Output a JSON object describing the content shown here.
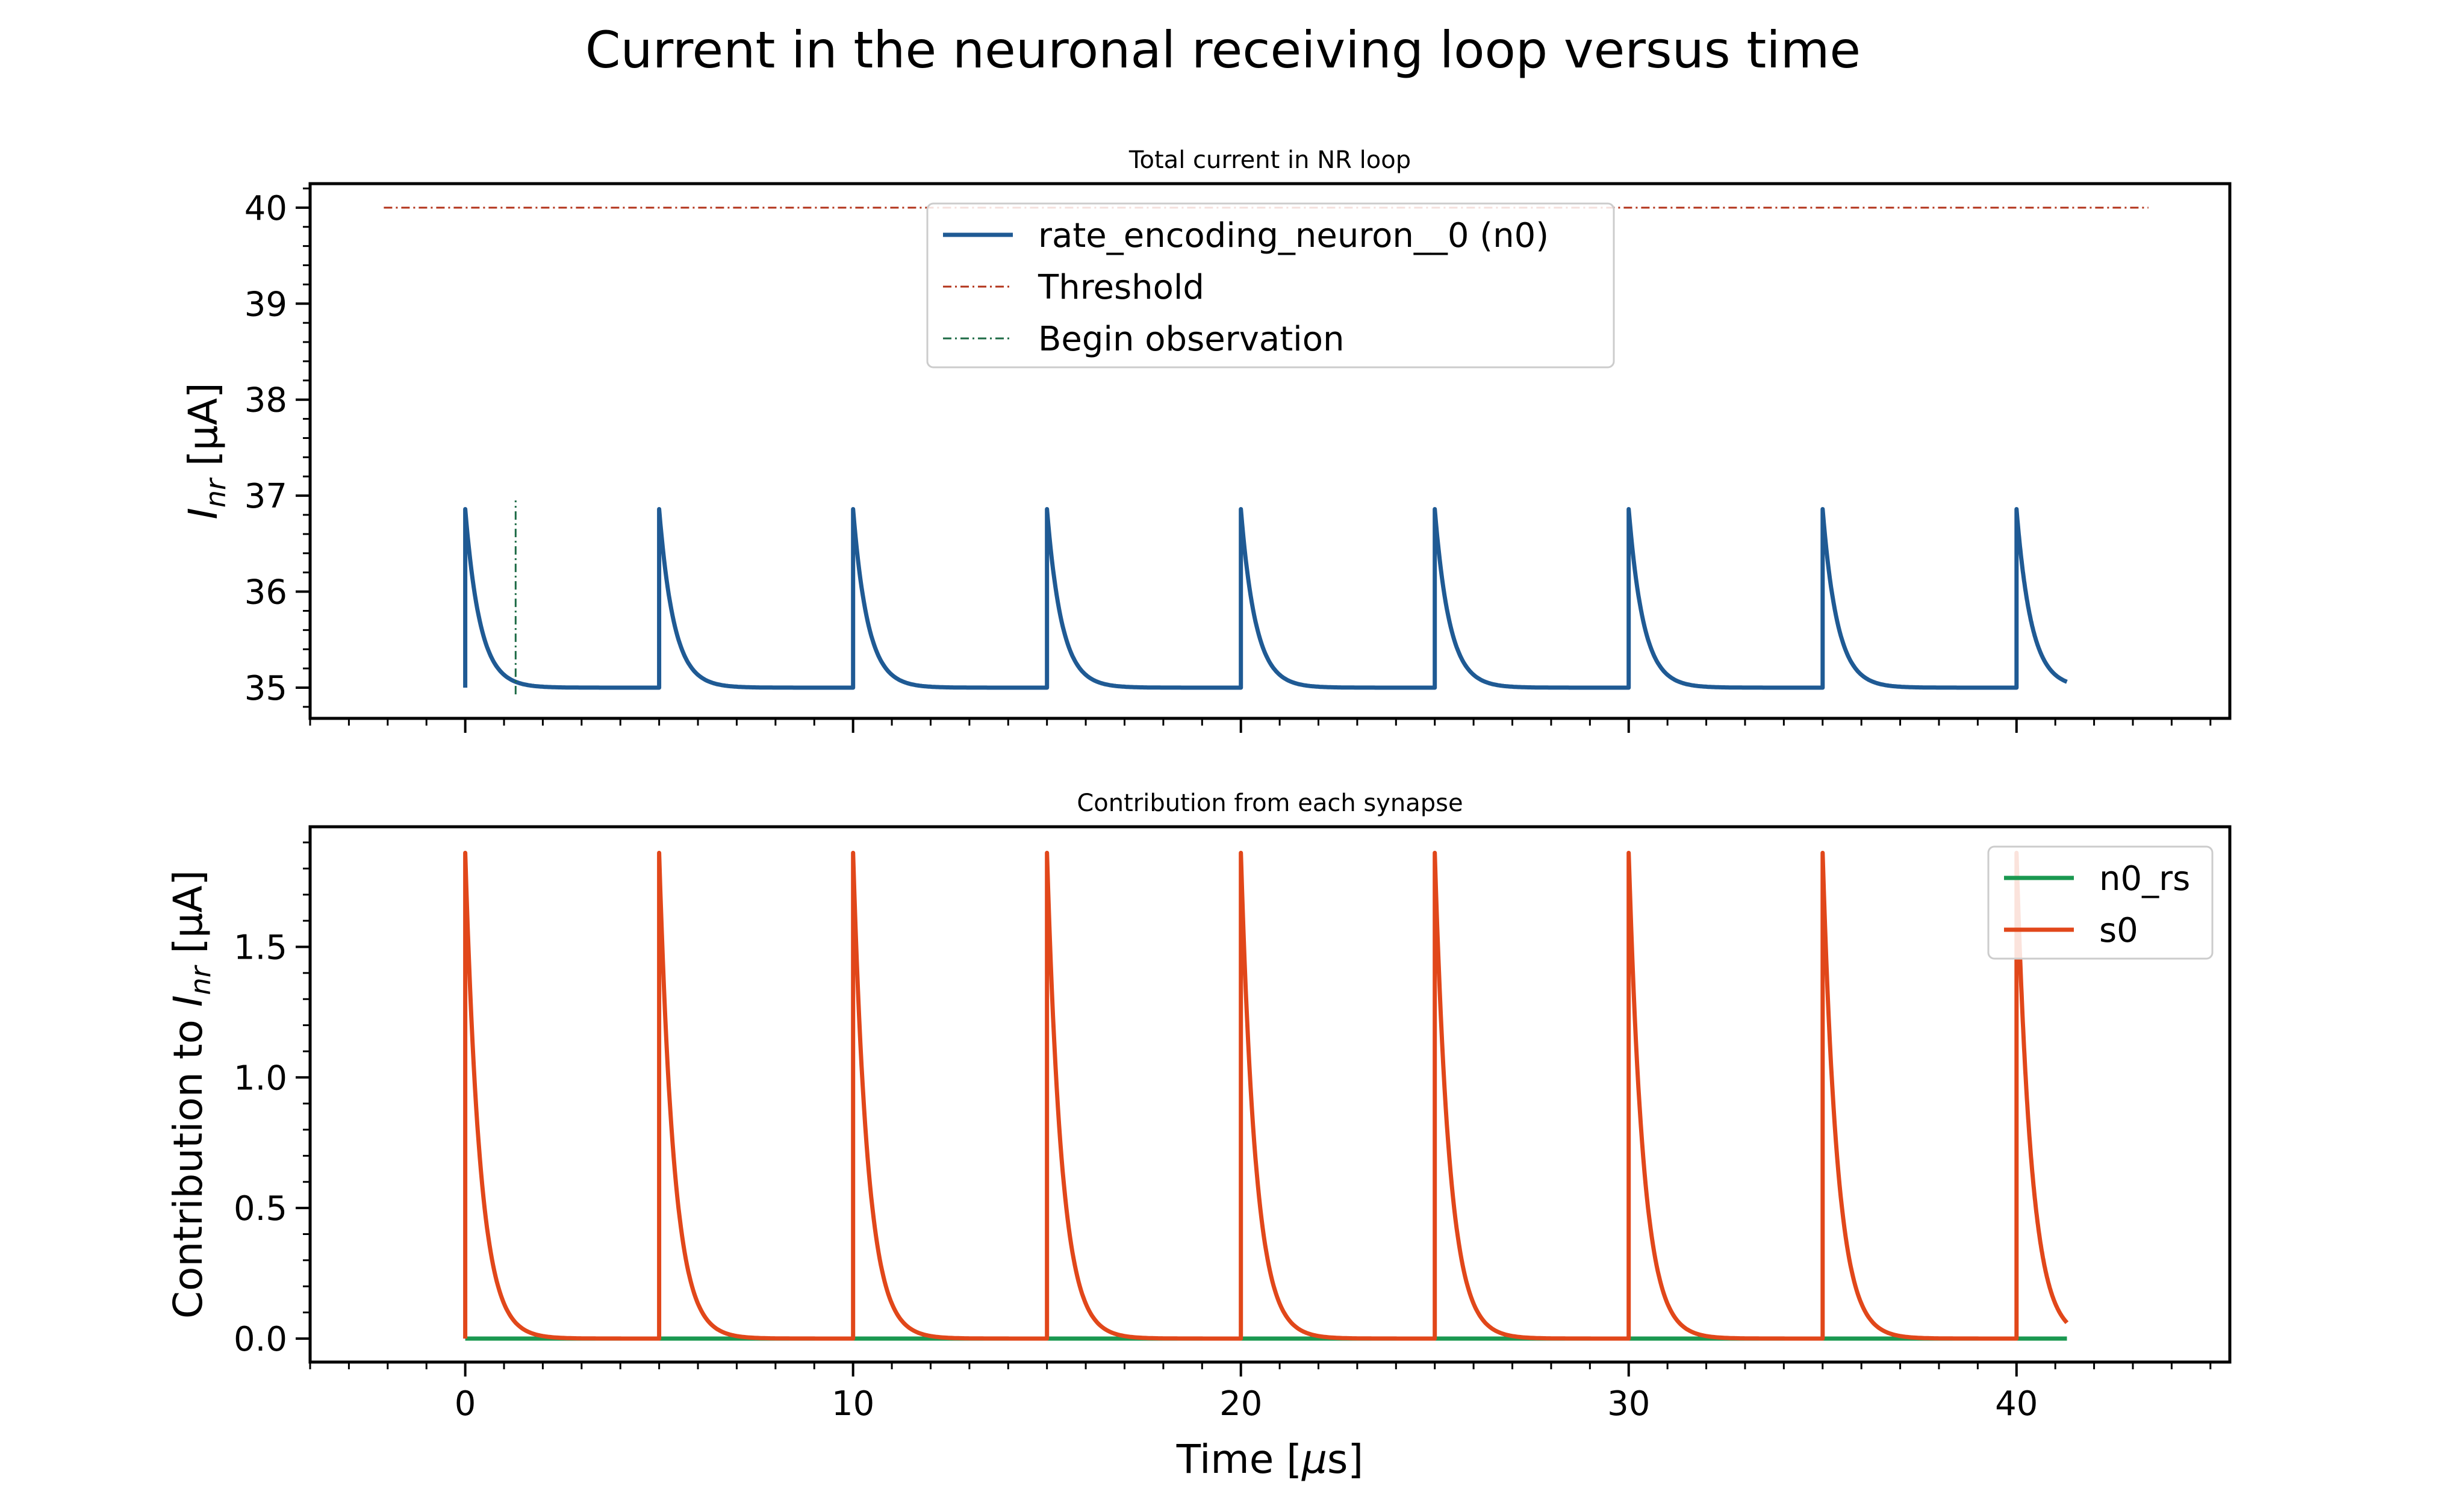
{
  "figure": {
    "title": "Current in the neuronal receiving loop versus time"
  },
  "chart_data": [
    {
      "type": "line",
      "title": "Total current in NR loop",
      "xlabel": "",
      "ylabel": "I_nr [μA]",
      "ylabel_parts": {
        "main": "I",
        "sub": "nr",
        "unit": " [μA]"
      },
      "xlim": [
        -4,
        45.5
      ],
      "ylim": [
        34.68,
        40.25
      ],
      "xticks": [
        0,
        10,
        20,
        30,
        40
      ],
      "yticks": [
        35,
        36,
        37,
        38,
        39,
        40
      ],
      "legend_position": "top-center",
      "spike_times": [
        0,
        5,
        10,
        15,
        20,
        25,
        30,
        35,
        40
      ],
      "decay_tau": 0.38,
      "series": [
        {
          "name": "rate_encoding_neuron__0 (n0)",
          "color": "#1f5a94",
          "style": "solid",
          "baseline": 35,
          "peak": 36.86,
          "x_range": [
            0,
            41.3
          ]
        },
        {
          "name": "Threshold",
          "color": "#b2331a",
          "style": "dashdot",
          "x": [
            -2.1,
            43.4
          ],
          "y": [
            40,
            40
          ]
        },
        {
          "name": "Begin observation",
          "color": "#1e6b46",
          "style": "dashdot",
          "x": [
            1.3,
            1.3
          ],
          "y": [
            34.93,
            36.95
          ]
        }
      ]
    },
    {
      "type": "line",
      "title": "Contribution from each synapse",
      "xlabel": "Time [μs]",
      "xlabel_parts": {
        "main": "Time [",
        "mu": "μ",
        "unit": "s]"
      },
      "ylabel": "Contribution to I_nr [μA]",
      "ylabel_parts": {
        "main": "Contribution to I",
        "sub": "nr",
        "unit": " [μA]"
      },
      "xlim": [
        -4,
        45.5
      ],
      "ylim": [
        -0.09,
        1.96
      ],
      "xticks": [
        0,
        10,
        20,
        30,
        40
      ],
      "yticks": [
        0.0,
        0.5,
        1.0,
        1.5
      ],
      "ytick_labels": [
        "0.0",
        "0.5",
        "1.0",
        "1.5"
      ],
      "legend_position": "top-right",
      "spike_times": [
        0,
        5,
        10,
        15,
        20,
        25,
        30,
        35,
        40
      ],
      "decay_tau": 0.38,
      "series": [
        {
          "name": "n0_rs",
          "color": "#1a9850",
          "style": "solid",
          "x": [
            0,
            41.3
          ],
          "y": [
            0,
            0
          ]
        },
        {
          "name": "s0",
          "color": "#e1471a",
          "style": "solid",
          "baseline": 0,
          "peak": 1.86,
          "x_range": [
            0,
            41.3
          ]
        }
      ]
    }
  ]
}
